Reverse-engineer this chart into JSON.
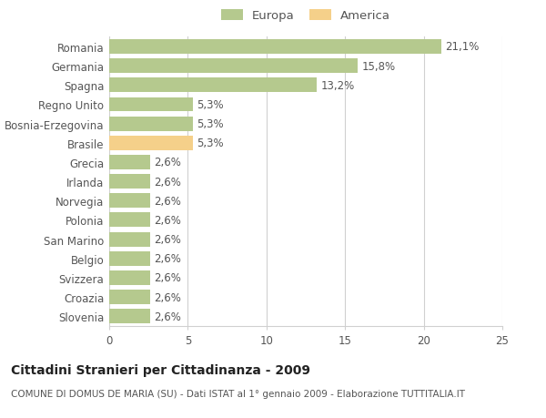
{
  "categories": [
    "Slovenia",
    "Croazia",
    "Svizzera",
    "Belgio",
    "San Marino",
    "Polonia",
    "Norvegia",
    "Irlanda",
    "Grecia",
    "Brasile",
    "Bosnia-Erzegovina",
    "Regno Unito",
    "Spagna",
    "Germania",
    "Romania"
  ],
  "values": [
    2.6,
    2.6,
    2.6,
    2.6,
    2.6,
    2.6,
    2.6,
    2.6,
    2.6,
    5.3,
    5.3,
    5.3,
    13.2,
    15.8,
    21.1
  ],
  "labels": [
    "2,6%",
    "2,6%",
    "2,6%",
    "2,6%",
    "2,6%",
    "2,6%",
    "2,6%",
    "2,6%",
    "2,6%",
    "5,3%",
    "5,3%",
    "5,3%",
    "13,2%",
    "15,8%",
    "21,1%"
  ],
  "colors": [
    "#b5c98e",
    "#b5c98e",
    "#b5c98e",
    "#b5c98e",
    "#b5c98e",
    "#b5c98e",
    "#b5c98e",
    "#b5c98e",
    "#b5c98e",
    "#f5d08a",
    "#b5c98e",
    "#b5c98e",
    "#b5c98e",
    "#b5c98e",
    "#b5c98e"
  ],
  "europa_color": "#b5c98e",
  "america_color": "#f5d08a",
  "background_color": "#ffffff",
  "grid_color": "#d0d0d0",
  "title": "Cittadini Stranieri per Cittadinanza - 2009",
  "subtitle": "COMUNE DI DOMUS DE MARIA (SU) - Dati ISTAT al 1° gennaio 2009 - Elaborazione TUTTITALIA.IT",
  "xlim": [
    0,
    25
  ],
  "xticks": [
    0,
    5,
    10,
    15,
    20,
    25
  ],
  "legend_europa": "Europa",
  "legend_america": "America",
  "bar_height": 0.75,
  "label_fontsize": 8.5,
  "tick_fontsize": 8.5,
  "title_fontsize": 10,
  "subtitle_fontsize": 7.5,
  "text_color": "#555555"
}
